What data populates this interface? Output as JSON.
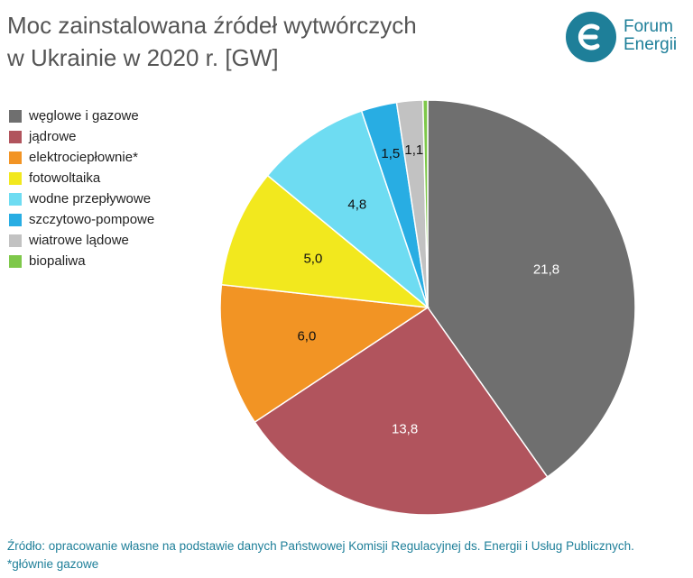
{
  "chart_data": {
    "type": "pie",
    "title_lines": [
      "Moc zainstalowana źródeł wytwórczych",
      "w Ukrainie w 2020 r. [GW]"
    ],
    "categories": [
      "węglowe i gazowe",
      "jądrowe",
      "elektrociepłownie*",
      "fotowoltaika",
      "wodne przepływowe",
      "szczytowo-pompowe",
      "wiatrowe lądowe",
      "biopaliwa"
    ],
    "values": [
      21.8,
      13.8,
      6.0,
      5.0,
      4.8,
      1.5,
      1.1,
      0.2
    ],
    "value_labels": [
      "21,8",
      "13,8",
      "6,0",
      "5,0",
      "4,8",
      "1,5",
      "1,1",
      ""
    ],
    "colors": [
      "#6f6f6f",
      "#b1545d",
      "#f29424",
      "#f2e81e",
      "#6edcf2",
      "#28ade3",
      "#c2c2c2",
      "#7ec84a"
    ],
    "label_colors": [
      "#ffffff",
      "#ffffff",
      "#111111",
      "#111111",
      "#111111",
      "#111111",
      "#111111",
      "#111111"
    ],
    "start_angle_deg": 0,
    "direction": "clockwise",
    "legend_position": "left"
  },
  "logo": {
    "line1": "Forum",
    "line2": "Energii",
    "color": "#1e7f99"
  },
  "footer": {
    "source": "Źródło: opracowanie własne na podstawie danych Państwowej Komisji Regulacyjnej ds. Energii i Usług Publicznych.",
    "note": "*głównie gazowe"
  }
}
